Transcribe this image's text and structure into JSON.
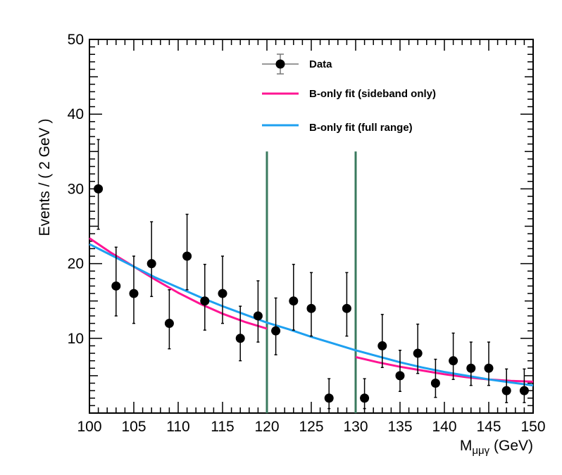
{
  "chart_data": {
    "type": "scatter",
    "title": "",
    "xlabel": "M",
    "xlabel_sub": "μμγ",
    "xlabel_unit": " (GeV)",
    "ylabel": "Events / ( 2 GeV )",
    "xlim": [
      100,
      150
    ],
    "ylim": [
      0,
      50
    ],
    "x_ticks": [
      100,
      105,
      110,
      115,
      120,
      125,
      130,
      135,
      140,
      145,
      150
    ],
    "y_ticks": [
      10,
      20,
      30,
      40,
      50
    ],
    "data": {
      "name": "Data",
      "color": "#000000",
      "points": [
        {
          "x": 101,
          "y": 30,
          "ylo": 24.6,
          "yhi": 36.6
        },
        {
          "x": 103,
          "y": 17,
          "ylo": 13.0,
          "yhi": 22.2
        },
        {
          "x": 105,
          "y": 16,
          "ylo": 12.0,
          "yhi": 21.0
        },
        {
          "x": 107,
          "y": 20,
          "ylo": 15.6,
          "yhi": 25.6
        },
        {
          "x": 109,
          "y": 12,
          "ylo": 8.6,
          "yhi": 16.5
        },
        {
          "x": 111,
          "y": 21,
          "ylo": 16.5,
          "yhi": 26.6
        },
        {
          "x": 113,
          "y": 15,
          "ylo": 11.1,
          "yhi": 19.9
        },
        {
          "x": 115,
          "y": 16,
          "ylo": 12.0,
          "yhi": 21.0
        },
        {
          "x": 117,
          "y": 10,
          "ylo": 7.0,
          "yhi": 14.3
        },
        {
          "x": 119,
          "y": 13,
          "ylo": 9.5,
          "yhi": 17.7
        },
        {
          "x": 121,
          "y": 11,
          "ylo": 7.8,
          "yhi": 15.4
        },
        {
          "x": 123,
          "y": 15,
          "ylo": 11.1,
          "yhi": 19.9
        },
        {
          "x": 125,
          "y": 14,
          "ylo": 10.3,
          "yhi": 18.8
        },
        {
          "x": 127,
          "y": 2,
          "ylo": 0.6,
          "yhi": 4.6
        },
        {
          "x": 129,
          "y": 14,
          "ylo": 10.3,
          "yhi": 18.8
        },
        {
          "x": 131,
          "y": 2,
          "ylo": 0.6,
          "yhi": 4.6
        },
        {
          "x": 133,
          "y": 9,
          "ylo": 6.1,
          "yhi": 13.2
        },
        {
          "x": 135,
          "y": 5,
          "ylo": 2.9,
          "yhi": 8.4
        },
        {
          "x": 137,
          "y": 8,
          "ylo": 5.3,
          "yhi": 11.9
        },
        {
          "x": 139,
          "y": 4,
          "ylo": 2.1,
          "yhi": 7.2
        },
        {
          "x": 141,
          "y": 7,
          "ylo": 4.5,
          "yhi": 10.7
        },
        {
          "x": 143,
          "y": 6,
          "ylo": 3.7,
          "yhi": 9.5
        },
        {
          "x": 145,
          "y": 6,
          "ylo": 3.7,
          "yhi": 9.5
        },
        {
          "x": 147,
          "y": 3,
          "ylo": 1.4,
          "yhi": 5.9
        },
        {
          "x": 149,
          "y": 3,
          "ylo": 1.4,
          "yhi": 5.9
        }
      ]
    },
    "series": [
      {
        "name": "B-only fit (sideband only)",
        "color": "#ff1493",
        "segments": [
          {
            "x": [
              100,
              102.5,
              105,
              107.5,
              110,
              112.5,
              115,
              117.5,
              120
            ],
            "y": [
              23.4,
              21.4,
              19.6,
              17.8,
              16.1,
              14.6,
              13.3,
              12.2,
              11.3
            ]
          },
          {
            "x": [
              130,
              132.5,
              135,
              137.5,
              140,
              142.5,
              145,
              147.5,
              150
            ],
            "y": [
              7.5,
              6.8,
              6.2,
              5.7,
              5.2,
              4.8,
              4.5,
              4.3,
              4.2
            ]
          }
        ]
      },
      {
        "name": "B-only fit (full range)",
        "color": "#1ea0f0",
        "segments": [
          {
            "x": [
              100,
              102.5,
              105,
              107.5,
              110,
              112.5,
              115,
              117.5,
              120,
              122.5,
              125,
              127.5,
              130,
              132.5,
              135,
              137.5,
              140,
              142.5,
              145,
              147.5,
              150
            ],
            "y": [
              22.6,
              21.1,
              19.6,
              18.1,
              16.8,
              15.5,
              14.3,
              13.2,
              12.1,
              11.2,
              10.2,
              9.3,
              8.4,
              7.6,
              6.8,
              6.1,
              5.5,
              5.0,
              4.5,
              4.1,
              3.7
            ]
          }
        ]
      }
    ],
    "vertical_lines": [
      {
        "x": 120,
        "y_top": 35,
        "color": "#3a7a5e"
      },
      {
        "x": 130,
        "y_top": 35,
        "color": "#3a7a5e"
      }
    ],
    "legend": {
      "position": "top-center",
      "entries": [
        "Data",
        "B-only fit (sideband only)",
        "B-only fit (full range)"
      ]
    }
  }
}
